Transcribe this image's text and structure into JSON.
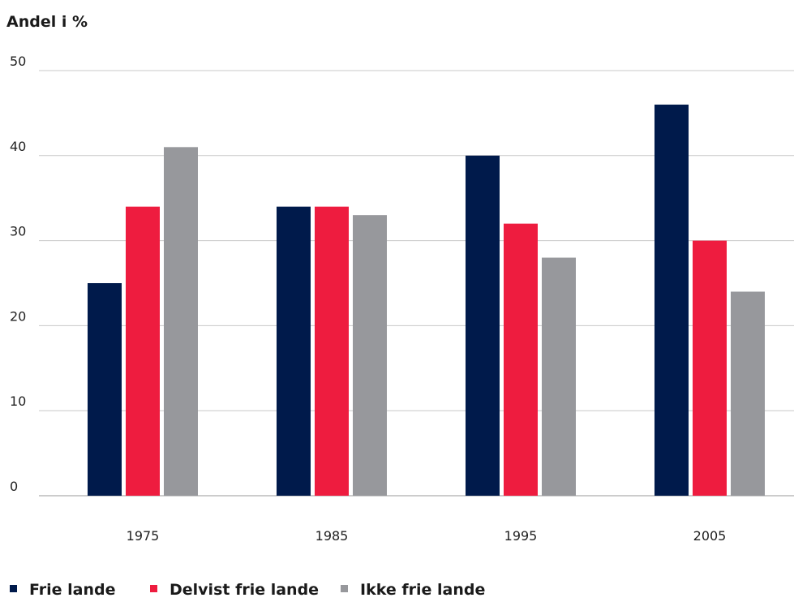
{
  "chart_data": {
    "type": "bar",
    "ylabel": "Andel i %",
    "categories": [
      "1975",
      "1985",
      "1995",
      "2005"
    ],
    "series": [
      {
        "name": "Frie lande",
        "color": "#001a4b",
        "values": [
          25,
          34,
          40,
          46
        ]
      },
      {
        "name": "Delvist frie lande",
        "color": "#ee1c3f",
        "values": [
          34,
          34,
          32,
          30
        ]
      },
      {
        "name": "Ikke frie lande",
        "color": "#97989c",
        "values": [
          41,
          33,
          28,
          24
        ]
      }
    ],
    "ylim": [
      0,
      50
    ],
    "yticks": [
      0,
      10,
      20,
      30,
      40,
      50
    ],
    "grid": true,
    "legend_position": "bottom-left"
  }
}
